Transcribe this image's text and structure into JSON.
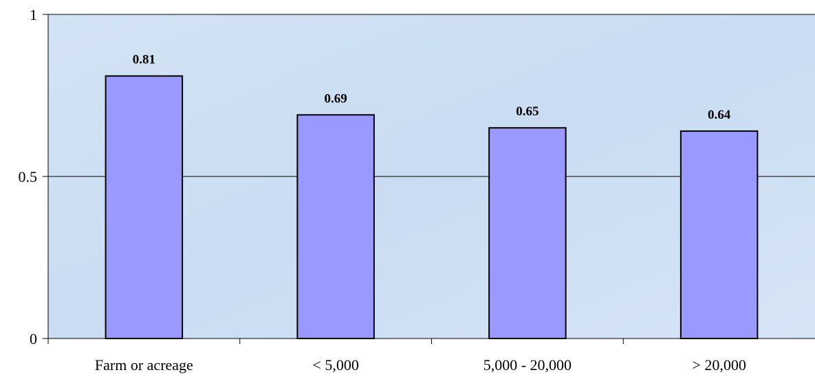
{
  "chart_data": {
    "type": "bar",
    "categories": [
      "Farm or acreage",
      "< 5,000",
      "5,000 - 20,000",
      "> 20,000"
    ],
    "values": [
      0.81,
      0.69,
      0.65,
      0.64
    ],
    "data_labels": [
      "0.81",
      "0.69",
      "0.65",
      "0.64"
    ],
    "title": "",
    "xlabel": "",
    "ylabel": "",
    "ylim": [
      0,
      1
    ],
    "yticks": [
      0,
      0.5,
      1
    ],
    "ytick_labels": [
      "0",
      "0.5",
      "1"
    ],
    "grid": true,
    "legend": "none",
    "bar_color": "#9999ff",
    "plot_background": "#cfe0f3"
  }
}
